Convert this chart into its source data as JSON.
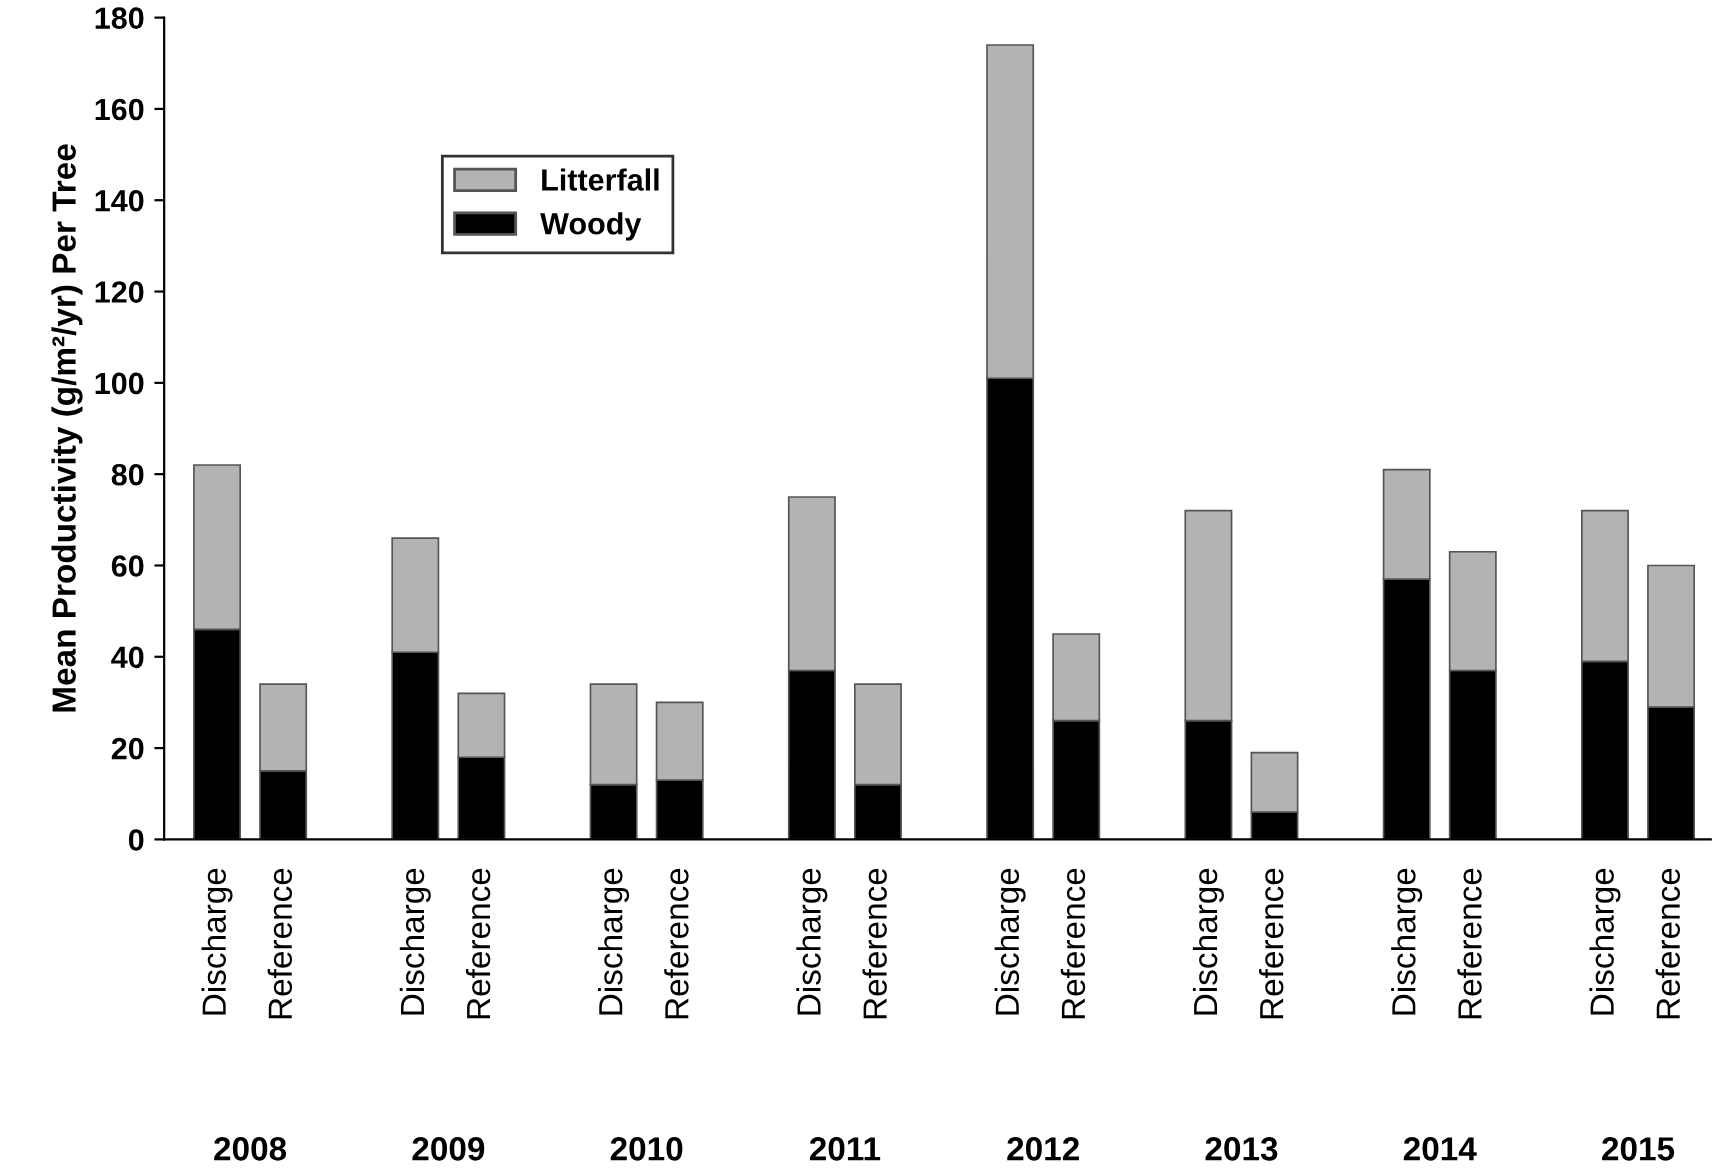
{
  "chart_data": {
    "type": "bar",
    "stacked": true,
    "ylabel": "Mean Productivity (g/m²/yr) Per Tree",
    "categories": [
      "Discharge",
      "Reference",
      "Discharge",
      "Reference",
      "Discharge",
      "Reference",
      "Discharge",
      "Reference",
      "Discharge",
      "Reference",
      "Discharge",
      "Reference",
      "Discharge",
      "Reference",
      "Discharge",
      "Reference"
    ],
    "series": [
      {
        "name": "Woody",
        "color": "#000000",
        "values": [
          46,
          15,
          41,
          18,
          12,
          13,
          37,
          12,
          101,
          26,
          26,
          6,
          57,
          37,
          39,
          29
        ]
      },
      {
        "name": "Litterfall",
        "color": "#b3b3b3",
        "values": [
          36,
          19,
          25,
          14,
          22,
          17,
          38,
          22,
          73,
          19,
          46,
          13,
          24,
          26,
          33,
          31
        ]
      }
    ],
    "annotations": [
      "2008",
      "2009",
      "2010",
      "2011",
      "2012",
      "2013",
      "2014",
      "2015"
    ],
    "ylim": [
      0,
      180
    ],
    "yticks": [
      0,
      20,
      40,
      60,
      80,
      100,
      120,
      140,
      160,
      180
    ],
    "grid": false,
    "legend": "top left"
  }
}
